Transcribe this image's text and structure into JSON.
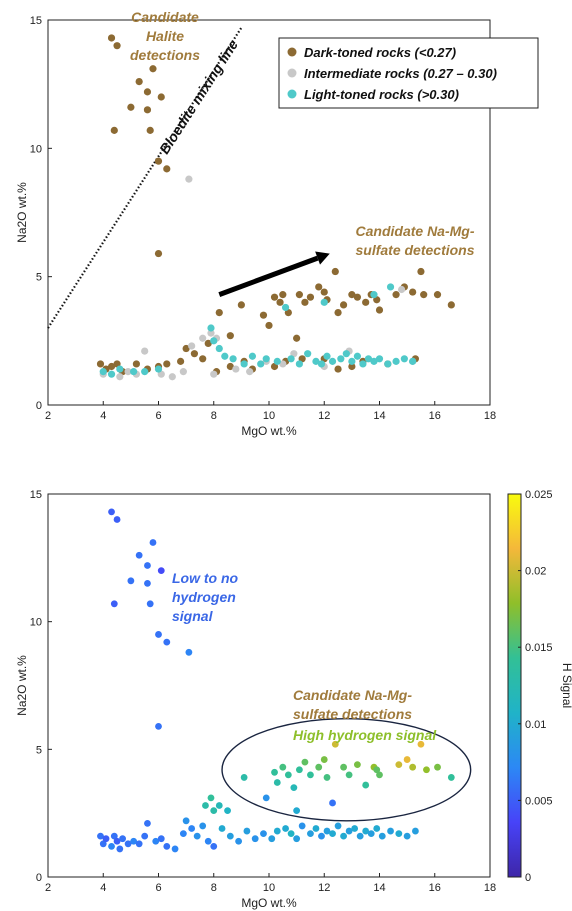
{
  "colors": {
    "dark": "#8c6a33",
    "intermediate": "#c8c8c8",
    "light": "#4fc9c9",
    "annotation": "#a07b3c",
    "low_h": "#3a67e6",
    "high_h": "#8dbf2a"
  },
  "chart_data": [
    {
      "type": "scatter",
      "xlabel": "MgO wt.%",
      "ylabel": "Na2O wt.%",
      "xlim": [
        2,
        18
      ],
      "ylim": [
        0,
        15
      ],
      "xticks": [
        "2",
        "4",
        "6",
        "8",
        "10",
        "12",
        "14",
        "16",
        "18"
      ],
      "yticks": [
        "0",
        "5",
        "10",
        "15"
      ],
      "grid": false,
      "legend_position": "top-right",
      "legend": [
        {
          "label": "Dark-toned rocks (<0.27)",
          "color": "#8c6a33"
        },
        {
          "label": "Intermediate rocks (0.27 – 0.30)",
          "color": "#c8c8c8"
        },
        {
          "label": "Light-toned rocks (>0.30)",
          "color": "#4fc9c9"
        }
      ],
      "annotations": {
        "halite": [
          "Candidate",
          "Halite",
          "detections"
        ],
        "mixing_line": "Bloedite mixing line",
        "namg": [
          "Candidate Na-Mg-",
          "sulfate detections"
        ]
      },
      "mixing_line_points": [
        [
          2,
          3.0
        ],
        [
          9.0,
          14.7
        ]
      ],
      "arrow_points": [
        [
          8.2,
          4.3
        ],
        [
          12.2,
          5.9
        ]
      ],
      "series": [
        {
          "name": "Dark-toned rocks (<0.27)",
          "color": "#8c6a33",
          "points": [
            [
              4.3,
              14.3
            ],
            [
              4.5,
              14.0
            ],
            [
              4.4,
              10.7
            ],
            [
              5.0,
              11.6
            ],
            [
              5.3,
              12.6
            ],
            [
              5.6,
              12.2
            ],
            [
              5.6,
              11.5
            ],
            [
              5.7,
              10.7
            ],
            [
              5.8,
              13.1
            ],
            [
              6.1,
              12.0
            ],
            [
              6.0,
              9.5
            ],
            [
              6.3,
              9.2
            ],
            [
              6.0,
              5.9
            ],
            [
              8.2,
              3.6
            ],
            [
              8.6,
              2.7
            ],
            [
              9.0,
              3.9
            ],
            [
              9.8,
              3.5
            ],
            [
              10.2,
              4.2
            ],
            [
              10.4,
              4.0
            ],
            [
              10.5,
              4.3
            ],
            [
              10.7,
              3.6
            ],
            [
              11.1,
              4.3
            ],
            [
              11.3,
              4.0
            ],
            [
              11.5,
              4.2
            ],
            [
              11.8,
              4.6
            ],
            [
              12.0,
              4.4
            ],
            [
              12.1,
              4.1
            ],
            [
              12.4,
              5.2
            ],
            [
              12.5,
              3.6
            ],
            [
              12.7,
              3.9
            ],
            [
              13.0,
              4.3
            ],
            [
              13.2,
              4.2
            ],
            [
              13.5,
              4.0
            ],
            [
              13.7,
              4.3
            ],
            [
              13.9,
              4.1
            ],
            [
              14.0,
              3.7
            ],
            [
              14.6,
              4.3
            ],
            [
              14.9,
              4.6
            ],
            [
              15.2,
              4.4
            ],
            [
              15.5,
              5.2
            ],
            [
              15.6,
              4.3
            ],
            [
              16.1,
              4.3
            ],
            [
              16.6,
              3.9
            ],
            [
              11.0,
              2.6
            ],
            [
              10.0,
              3.1
            ],
            [
              3.9,
              1.6
            ],
            [
              4.1,
              1.4
            ],
            [
              4.3,
              1.5
            ],
            [
              4.5,
              1.6
            ],
            [
              4.7,
              1.3
            ],
            [
              5.2,
              1.6
            ],
            [
              5.6,
              1.4
            ],
            [
              6.0,
              1.5
            ],
            [
              6.3,
              1.6
            ],
            [
              6.8,
              1.7
            ],
            [
              7.0,
              2.2
            ],
            [
              7.3,
              2.0
            ],
            [
              7.6,
              1.8
            ],
            [
              7.8,
              2.4
            ],
            [
              8.1,
              1.3
            ],
            [
              8.6,
              1.5
            ],
            [
              9.1,
              1.7
            ],
            [
              9.4,
              1.4
            ],
            [
              10.2,
              1.5
            ],
            [
              10.6,
              1.7
            ],
            [
              11.2,
              1.8
            ],
            [
              12.0,
              1.8
            ],
            [
              12.5,
              1.4
            ],
            [
              13.0,
              1.5
            ],
            [
              13.4,
              1.7
            ],
            [
              14.3,
              1.6
            ],
            [
              15.3,
              1.8
            ]
          ]
        },
        {
          "name": "Intermediate rocks (0.27 – 0.30)",
          "color": "#c8c8c8",
          "points": [
            [
              7.1,
              8.8
            ],
            [
              4.0,
              1.2
            ],
            [
              4.6,
              1.1
            ],
            [
              4.9,
              1.3
            ],
            [
              5.2,
              1.2
            ],
            [
              5.5,
              2.1
            ],
            [
              6.1,
              1.2
            ],
            [
              6.5,
              1.1
            ],
            [
              6.9,
              1.3
            ],
            [
              7.2,
              2.3
            ],
            [
              7.6,
              2.6
            ],
            [
              7.9,
              2.8
            ],
            [
              8.1,
              2.6
            ],
            [
              8.0,
              1.2
            ],
            [
              8.8,
              1.4
            ],
            [
              9.3,
              1.3
            ],
            [
              9.9,
              1.7
            ],
            [
              10.5,
              1.6
            ],
            [
              10.9,
              2.0
            ],
            [
              12.0,
              1.5
            ],
            [
              12.9,
              2.1
            ],
            [
              14.8,
              4.5
            ],
            [
              15.2,
              1.7
            ]
          ]
        },
        {
          "name": "Light-toned rocks (>0.30)",
          "color": "#4fc9c9",
          "points": [
            [
              4.0,
              1.3
            ],
            [
              4.3,
              1.2
            ],
            [
              4.6,
              1.4
            ],
            [
              5.1,
              1.3
            ],
            [
              5.5,
              1.3
            ],
            [
              6.0,
              1.4
            ],
            [
              7.9,
              3.0
            ],
            [
              8.0,
              2.5
            ],
            [
              8.2,
              2.2
            ],
            [
              8.4,
              1.9
            ],
            [
              8.7,
              1.8
            ],
            [
              9.1,
              1.6
            ],
            [
              9.4,
              1.9
            ],
            [
              9.7,
              1.6
            ],
            [
              9.9,
              1.8
            ],
            [
              10.3,
              1.7
            ],
            [
              10.8,
              1.8
            ],
            [
              11.1,
              1.6
            ],
            [
              11.4,
              2.0
            ],
            [
              11.7,
              1.7
            ],
            [
              11.9,
              1.6
            ],
            [
              12.1,
              1.9
            ],
            [
              12.3,
              1.7
            ],
            [
              12.6,
              1.8
            ],
            [
              12.8,
              2.0
            ],
            [
              13.0,
              1.7
            ],
            [
              13.2,
              1.9
            ],
            [
              13.4,
              1.6
            ],
            [
              13.6,
              1.8
            ],
            [
              13.8,
              1.7
            ],
            [
              14.0,
              1.8
            ],
            [
              14.3,
              1.6
            ],
            [
              14.6,
              1.7
            ],
            [
              14.9,
              1.8
            ],
            [
              15.2,
              1.7
            ],
            [
              12.0,
              4.0
            ],
            [
              13.8,
              4.3
            ],
            [
              14.4,
              4.6
            ],
            [
              10.6,
              3.8
            ]
          ]
        }
      ]
    },
    {
      "type": "scatter",
      "xlabel": "MgO wt.%",
      "ylabel": "Na2O wt.%",
      "xlim": [
        2,
        18
      ],
      "ylim": [
        0,
        15
      ],
      "xticks": [
        "2",
        "4",
        "6",
        "8",
        "10",
        "12",
        "14",
        "16",
        "18"
      ],
      "yticks": [
        "0",
        "5",
        "10",
        "15"
      ],
      "grid": false,
      "colorbar": {
        "label": "H Signal",
        "range": [
          0,
          0.025
        ],
        "ticks": [
          "0",
          "0.005",
          "0.01",
          "0.015",
          "0.02",
          "0.025"
        ],
        "tick_values": [
          0,
          0.005,
          0.01,
          0.015,
          0.02,
          0.025
        ],
        "colormap": [
          "#3e26a8",
          "#4743f8",
          "#2c88f5",
          "#20b3c8",
          "#32c096",
          "#8fbf2a",
          "#f4b83a",
          "#f9fb0e"
        ]
      },
      "annotations": {
        "low": [
          "Low to no",
          "hydrogen",
          "signal"
        ],
        "namg": [
          "Candidate Na-Mg-",
          "sulfate detections"
        ],
        "high": "High hydrogen signal"
      },
      "ellipse": {
        "cx": 12.8,
        "cy": 4.2,
        "rx": 4.5,
        "ry": 2.0
      },
      "points": [
        [
          4.3,
          14.3,
          0.005
        ],
        [
          4.5,
          14.0,
          0.005
        ],
        [
          4.4,
          10.7,
          0.005
        ],
        [
          5.0,
          11.6,
          0.006
        ],
        [
          5.3,
          12.6,
          0.006
        ],
        [
          5.6,
          12.2,
          0.006
        ],
        [
          5.6,
          11.5,
          0.006
        ],
        [
          5.7,
          10.7,
          0.006
        ],
        [
          5.8,
          13.1,
          0.006
        ],
        [
          6.1,
          12.0,
          0.004
        ],
        [
          6.0,
          9.5,
          0.006
        ],
        [
          6.3,
          9.2,
          0.006
        ],
        [
          7.1,
          8.8,
          0.007
        ],
        [
          6.0,
          5.9,
          0.006
        ],
        [
          9.1,
          3.9,
          0.013
        ],
        [
          10.2,
          4.1,
          0.014
        ],
        [
          10.3,
          3.7,
          0.013
        ],
        [
          10.5,
          4.3,
          0.015
        ],
        [
          10.7,
          4.0,
          0.014
        ],
        [
          10.9,
          3.5,
          0.012
        ],
        [
          11.1,
          4.2,
          0.014
        ],
        [
          11.3,
          4.5,
          0.016
        ],
        [
          11.5,
          4.0,
          0.014
        ],
        [
          11.8,
          4.3,
          0.016
        ],
        [
          12.0,
          4.6,
          0.017
        ],
        [
          12.1,
          3.9,
          0.015
        ],
        [
          12.4,
          5.2,
          0.02
        ],
        [
          12.3,
          2.9,
          0.006
        ],
        [
          12.7,
          4.3,
          0.016
        ],
        [
          12.9,
          4.0,
          0.015
        ],
        [
          13.2,
          4.4,
          0.017
        ],
        [
          13.5,
          3.6,
          0.014
        ],
        [
          13.8,
          4.3,
          0.018
        ],
        [
          14.0,
          4.0,
          0.016
        ],
        [
          14.7,
          4.4,
          0.02
        ],
        [
          15.0,
          4.6,
          0.021
        ],
        [
          15.2,
          4.3,
          0.019
        ],
        [
          15.5,
          5.2,
          0.021
        ],
        [
          15.7,
          4.2,
          0.018
        ],
        [
          16.1,
          4.3,
          0.017
        ],
        [
          16.6,
          3.9,
          0.014
        ],
        [
          13.9,
          4.2,
          0.016
        ],
        [
          7.7,
          2.8,
          0.013
        ],
        [
          7.9,
          3.1,
          0.014
        ],
        [
          8.0,
          2.6,
          0.013
        ],
        [
          8.2,
          2.8,
          0.012
        ],
        [
          8.5,
          2.6,
          0.011
        ],
        [
          9.9,
          3.1,
          0.008
        ],
        [
          11.0,
          2.6,
          0.01
        ],
        [
          3.9,
          1.6,
          0.006
        ],
        [
          4.0,
          1.3,
          0.006
        ],
        [
          4.1,
          1.5,
          0.005
        ],
        [
          4.3,
          1.2,
          0.007
        ],
        [
          4.4,
          1.6,
          0.006
        ],
        [
          4.5,
          1.4,
          0.005
        ],
        [
          4.6,
          1.1,
          0.006
        ],
        [
          4.7,
          1.5,
          0.006
        ],
        [
          4.9,
          1.3,
          0.006
        ],
        [
          5.1,
          1.4,
          0.007
        ],
        [
          5.3,
          1.3,
          0.006
        ],
        [
          5.5,
          1.6,
          0.006
        ],
        [
          5.6,
          2.1,
          0.006
        ],
        [
          5.9,
          1.4,
          0.007
        ],
        [
          6.1,
          1.5,
          0.006
        ],
        [
          6.3,
          1.2,
          0.006
        ],
        [
          6.6,
          1.1,
          0.007
        ],
        [
          6.9,
          1.7,
          0.007
        ],
        [
          7.0,
          2.2,
          0.008
        ],
        [
          7.2,
          1.9,
          0.007
        ],
        [
          7.4,
          1.6,
          0.008
        ],
        [
          7.6,
          2.0,
          0.008
        ],
        [
          7.8,
          1.4,
          0.007
        ],
        [
          8.0,
          1.2,
          0.006
        ],
        [
          8.3,
          1.9,
          0.01
        ],
        [
          8.6,
          1.6,
          0.009
        ],
        [
          8.9,
          1.4,
          0.008
        ],
        [
          9.2,
          1.8,
          0.009
        ],
        [
          9.5,
          1.5,
          0.008
        ],
        [
          9.8,
          1.7,
          0.008
        ],
        [
          10.1,
          1.5,
          0.009
        ],
        [
          10.3,
          1.8,
          0.01
        ],
        [
          10.6,
          1.9,
          0.01
        ],
        [
          10.8,
          1.7,
          0.011
        ],
        [
          11.0,
          1.5,
          0.009
        ],
        [
          11.2,
          2.0,
          0.008
        ],
        [
          11.5,
          1.7,
          0.009
        ],
        [
          11.7,
          1.9,
          0.01
        ],
        [
          11.9,
          1.6,
          0.008
        ],
        [
          12.1,
          1.8,
          0.009
        ],
        [
          12.3,
          1.7,
          0.01
        ],
        [
          12.5,
          2.0,
          0.009
        ],
        [
          12.7,
          1.6,
          0.01
        ],
        [
          12.9,
          1.8,
          0.009
        ],
        [
          13.1,
          1.9,
          0.01
        ],
        [
          13.3,
          1.6,
          0.009
        ],
        [
          13.5,
          1.8,
          0.01
        ],
        [
          13.7,
          1.7,
          0.009
        ],
        [
          13.9,
          1.9,
          0.01
        ],
        [
          14.1,
          1.6,
          0.009
        ],
        [
          14.4,
          1.8,
          0.009
        ],
        [
          14.7,
          1.7,
          0.01
        ],
        [
          15.0,
          1.6,
          0.009
        ],
        [
          15.3,
          1.8,
          0.009
        ]
      ]
    }
  ]
}
